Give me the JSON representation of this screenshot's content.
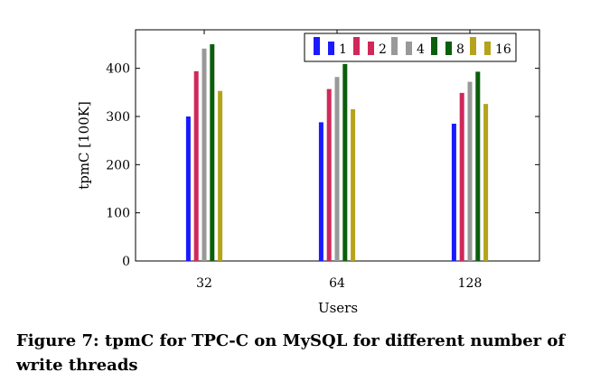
{
  "chart_data": {
    "type": "bar",
    "xlabel": "Users",
    "ylabel": "tpmC [100K]",
    "categories": [
      "32",
      "64",
      "128"
    ],
    "ylim": [
      0,
      480
    ],
    "yticks": [
      0,
      100,
      200,
      300,
      400
    ],
    "grid": false,
    "legend_position": "top-right",
    "series": [
      {
        "name": "1",
        "color": "#1a1aff",
        "values": [
          300,
          288,
          285
        ]
      },
      {
        "name": "2",
        "color": "#d0285a",
        "values": [
          394,
          357,
          349
        ]
      },
      {
        "name": "4",
        "color": "#999999",
        "values": [
          441,
          382,
          372
        ]
      },
      {
        "name": "8",
        "color": "#0b5e0b",
        "values": [
          450,
          409,
          393
        ]
      },
      {
        "name": "16",
        "color": "#b5a31c",
        "values": [
          353,
          315,
          326
        ]
      }
    ]
  },
  "caption": "Figure 7: tpmC for TPC-C on MySQL for different number of write threads"
}
